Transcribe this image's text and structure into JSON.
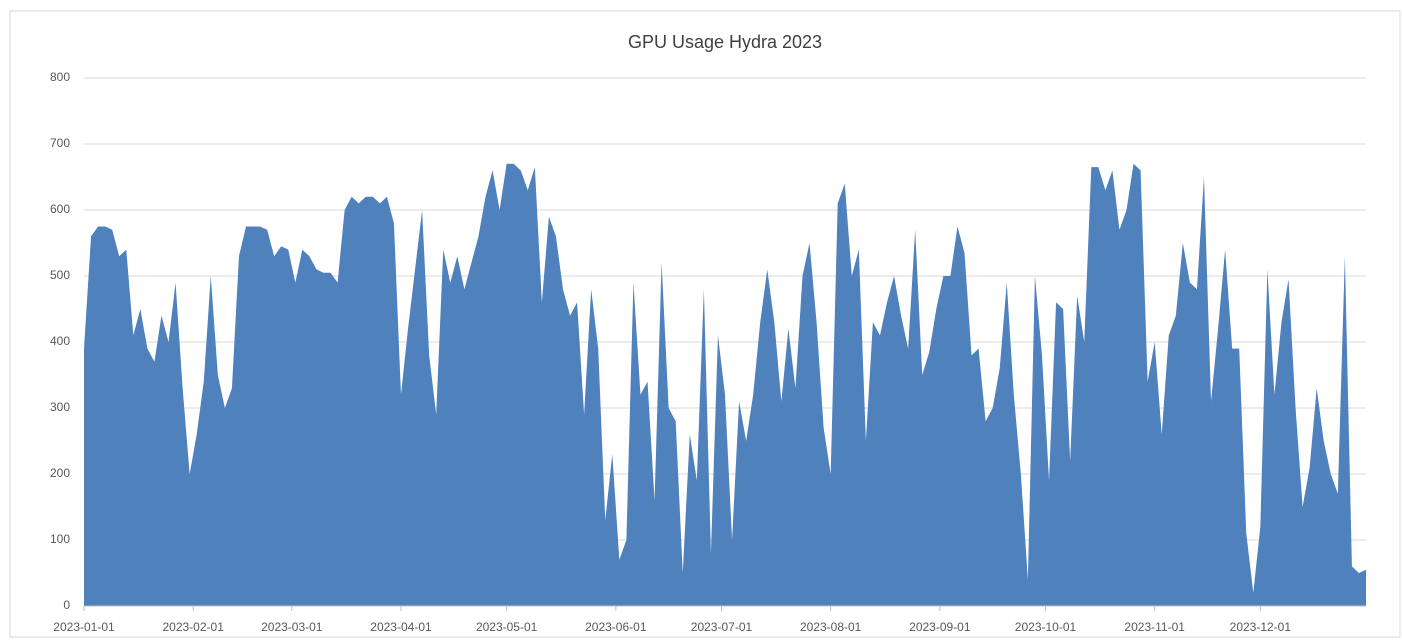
{
  "chart_data": {
    "type": "area",
    "title": "GPU Usage Hydra 2023",
    "color": "#4f81bd",
    "grid": true,
    "x": [
      "2023-01-01",
      "2023-01-03",
      "2023-01-05",
      "2023-01-07",
      "2023-01-09",
      "2023-01-11",
      "2023-01-13",
      "2023-01-15",
      "2023-01-17",
      "2023-01-19",
      "2023-01-21",
      "2023-01-23",
      "2023-01-25",
      "2023-01-27",
      "2023-01-29",
      "2023-01-31",
      "2023-02-02",
      "2023-02-04",
      "2023-02-06",
      "2023-02-08",
      "2023-02-10",
      "2023-02-12",
      "2023-02-14",
      "2023-02-16",
      "2023-02-18",
      "2023-02-20",
      "2023-02-22",
      "2023-02-24",
      "2023-02-26",
      "2023-02-28",
      "2023-03-02",
      "2023-03-04",
      "2023-03-06",
      "2023-03-08",
      "2023-03-10",
      "2023-03-12",
      "2023-03-14",
      "2023-03-16",
      "2023-03-18",
      "2023-03-20",
      "2023-03-22",
      "2023-03-24",
      "2023-03-26",
      "2023-03-28",
      "2023-03-30",
      "2023-04-01",
      "2023-04-03",
      "2023-04-05",
      "2023-04-07",
      "2023-04-09",
      "2023-04-11",
      "2023-04-13",
      "2023-04-15",
      "2023-04-17",
      "2023-04-19",
      "2023-04-21",
      "2023-04-23",
      "2023-04-25",
      "2023-04-27",
      "2023-04-29",
      "2023-05-01",
      "2023-05-03",
      "2023-05-05",
      "2023-05-07",
      "2023-05-09",
      "2023-05-11",
      "2023-05-13",
      "2023-05-15",
      "2023-05-17",
      "2023-05-19",
      "2023-05-21",
      "2023-05-23",
      "2023-05-25",
      "2023-05-27",
      "2023-05-29",
      "2023-05-31",
      "2023-06-02",
      "2023-06-04",
      "2023-06-06",
      "2023-06-08",
      "2023-06-10",
      "2023-06-12",
      "2023-06-14",
      "2023-06-16",
      "2023-06-18",
      "2023-06-20",
      "2023-06-22",
      "2023-06-24",
      "2023-06-26",
      "2023-06-28",
      "2023-06-30",
      "2023-07-02",
      "2023-07-04",
      "2023-07-06",
      "2023-07-08",
      "2023-07-10",
      "2023-07-12",
      "2023-07-14",
      "2023-07-16",
      "2023-07-18",
      "2023-07-20",
      "2023-07-22",
      "2023-07-24",
      "2023-07-26",
      "2023-07-28",
      "2023-07-30",
      "2023-08-01",
      "2023-08-03",
      "2023-08-05",
      "2023-08-07",
      "2023-08-09",
      "2023-08-11",
      "2023-08-13",
      "2023-08-15",
      "2023-08-17",
      "2023-08-19",
      "2023-08-21",
      "2023-08-23",
      "2023-08-25",
      "2023-08-27",
      "2023-08-29",
      "2023-08-31",
      "2023-09-02",
      "2023-09-04",
      "2023-09-06",
      "2023-09-08",
      "2023-09-10",
      "2023-09-12",
      "2023-09-14",
      "2023-09-16",
      "2023-09-18",
      "2023-09-20",
      "2023-09-22",
      "2023-09-24",
      "2023-09-26",
      "2023-09-28",
      "2023-09-30",
      "2023-10-02",
      "2023-10-04",
      "2023-10-06",
      "2023-10-08",
      "2023-10-10",
      "2023-10-12",
      "2023-10-14",
      "2023-10-16",
      "2023-10-18",
      "2023-10-20",
      "2023-10-22",
      "2023-10-24",
      "2023-10-26",
      "2023-10-28",
      "2023-10-30",
      "2023-11-01",
      "2023-11-03",
      "2023-11-05",
      "2023-11-07",
      "2023-11-09",
      "2023-11-11",
      "2023-11-13",
      "2023-11-15",
      "2023-11-17",
      "2023-11-19",
      "2023-11-21",
      "2023-11-23",
      "2023-11-25",
      "2023-11-27",
      "2023-11-29",
      "2023-12-01",
      "2023-12-03",
      "2023-12-05",
      "2023-12-07",
      "2023-12-09",
      "2023-12-11",
      "2023-12-13",
      "2023-12-15",
      "2023-12-17",
      "2023-12-19",
      "2023-12-21",
      "2023-12-23",
      "2023-12-25",
      "2023-12-27",
      "2023-12-29",
      "2023-12-31"
    ],
    "values": [
      390,
      560,
      575,
      575,
      570,
      530,
      540,
      410,
      450,
      390,
      370,
      440,
      400,
      490,
      330,
      200,
      260,
      340,
      500,
      350,
      300,
      330,
      530,
      575,
      575,
      575,
      570,
      530,
      545,
      540,
      490,
      540,
      530,
      510,
      505,
      505,
      490,
      600,
      620,
      610,
      620,
      620,
      610,
      620,
      580,
      320,
      420,
      510,
      600,
      380,
      290,
      540,
      490,
      530,
      480,
      520,
      560,
      620,
      660,
      600,
      670,
      670,
      660,
      630,
      665,
      460,
      590,
      560,
      480,
      440,
      460,
      290,
      480,
      390,
      130,
      230,
      70,
      100,
      490,
      320,
      340,
      160,
      520,
      300,
      280,
      50,
      260,
      190,
      480,
      80,
      410,
      320,
      100,
      310,
      250,
      320,
      430,
      510,
      430,
      310,
      420,
      330,
      500,
      550,
      430,
      270,
      200,
      610,
      640,
      500,
      540,
      250,
      430,
      410,
      460,
      500,
      440,
      390,
      570,
      350,
      385,
      450,
      500,
      500,
      575,
      535,
      380,
      390,
      280,
      300,
      360,
      490,
      320,
      200,
      40,
      500,
      380,
      190,
      460,
      450,
      220,
      470,
      400,
      665,
      665,
      630,
      660,
      570,
      600,
      670,
      660,
      340,
      400,
      260,
      410,
      440,
      550,
      490,
      480,
      650,
      310,
      420,
      540,
      390,
      390,
      110,
      20,
      120,
      510,
      320,
      430,
      495,
      300,
      150,
      210,
      330,
      250,
      200,
      170,
      530,
      60,
      50,
      55
    ],
    "xlim": [
      "2023-01-01",
      "2023-12-31"
    ],
    "xticks": [
      "2023-01-01",
      "2023-02-01",
      "2023-03-01",
      "2023-04-01",
      "2023-05-01",
      "2023-06-01",
      "2023-07-01",
      "2023-08-01",
      "2023-09-01",
      "2023-10-01",
      "2023-11-01",
      "2023-12-01"
    ],
    "ylim": [
      0,
      800
    ],
    "yticks": [
      0,
      100,
      200,
      300,
      400,
      500,
      600,
      700,
      800
    ]
  }
}
